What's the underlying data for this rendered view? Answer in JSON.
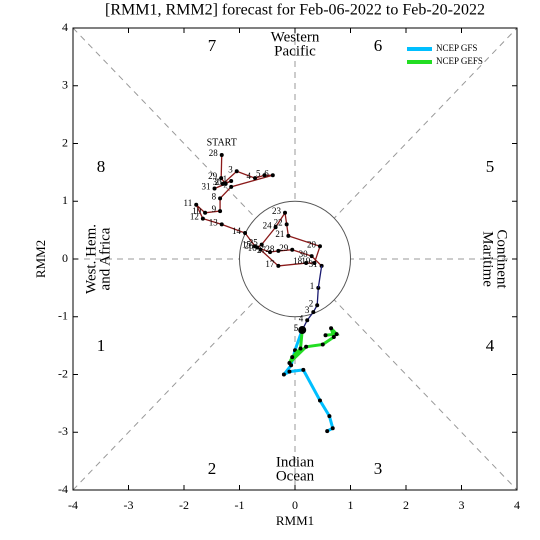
{
  "chart_data": {
    "type": "mjo-phase",
    "title": "[RMM1, RMM2] forecast for Feb-06-2022 to Feb-20-2022",
    "x_label": "RMM1",
    "y_label": "RMM2",
    "xlim": [
      -4,
      4
    ],
    "ylim": [
      -4,
      4
    ],
    "xticks": [
      -4,
      -3,
      -2,
      -1,
      0,
      1,
      2,
      3,
      4
    ],
    "yticks": [
      -4,
      -3,
      -2,
      -1,
      0,
      1,
      2,
      3,
      4
    ],
    "circle_radius": 1,
    "phases": [
      1,
      2,
      3,
      4,
      5,
      6,
      7,
      8
    ],
    "regions": [
      [
        "Western",
        "Pacific"
      ],
      [
        "Indian",
        "Ocean"
      ],
      [
        "West. Hem.",
        "and Africa"
      ],
      [
        "Maritime",
        "Continent"
      ]
    ],
    "start_label": "START",
    "legend_position": "upper right",
    "series": [
      {
        "kind": "observed",
        "color": "#8b1a1a",
        "label_color": "#000",
        "days": [
          28,
          29,
          30,
          31,
          1,
          2,
          3,
          4,
          5,
          6,
          7,
          8,
          9,
          10,
          11,
          12,
          13,
          14,
          15,
          16,
          17,
          18,
          19,
          20,
          21,
          22,
          23,
          24,
          25,
          26,
          27,
          28,
          29,
          30,
          31
        ],
        "x": [
          -1.32,
          -1.33,
          -1.25,
          -1.45,
          -1.15,
          -1.3,
          -1.05,
          -0.72,
          -0.55,
          -0.4,
          -1.15,
          -1.35,
          -1.35,
          -1.62,
          -1.78,
          -1.66,
          -1.32,
          -0.9,
          -0.72,
          -0.62,
          -0.3,
          0.2,
          0.35,
          0.45,
          -0.12,
          -0.15,
          -0.18,
          -0.35,
          -0.6,
          -0.68,
          -0.45,
          -0.3,
          -0.05,
          0.3,
          0.48
        ],
        "values": [
          1.8,
          1.4,
          1.3,
          1.22,
          1.35,
          1.3,
          1.52,
          1.4,
          1.45,
          1.45,
          1.25,
          1.05,
          0.83,
          0.8,
          0.94,
          0.7,
          0.6,
          0.45,
          0.22,
          0.16,
          -0.12,
          -0.07,
          -0.07,
          0.22,
          0.4,
          0.6,
          0.8,
          0.55,
          0.25,
          0.2,
          0.12,
          0.14,
          0.16,
          0.05,
          -0.12
        ]
      },
      {
        "kind": "observed",
        "color": "#191970",
        "label_color": "#000",
        "days": [
          1,
          2,
          3,
          4,
          5
        ],
        "x": [
          0.42,
          0.4,
          0.33,
          0.22,
          0.13
        ],
        "values": [
          -0.5,
          -0.8,
          -0.92,
          -1.06,
          -1.23
        ]
      },
      {
        "kind": "forecast",
        "name": "NCEP GFS",
        "color": "#00bfff",
        "x": [
          0.13,
          0.0,
          -0.07,
          -0.2,
          -0.1,
          0.15,
          0.45,
          0.62,
          0.68,
          0.58
        ],
        "values": [
          -1.23,
          -1.58,
          -1.84,
          -2.0,
          -1.95,
          -1.92,
          -2.45,
          -2.72,
          -2.93,
          -2.98
        ]
      },
      {
        "kind": "forecast",
        "name": "NCEP GEFS",
        "color": "#22dd22",
        "x": [
          0.13,
          0.1,
          -0.05,
          -0.1,
          0.2,
          0.5,
          0.7,
          0.65,
          0.75,
          0.55
        ],
        "values": [
          -1.23,
          -1.55,
          -1.7,
          -1.8,
          -1.52,
          -1.48,
          -1.35,
          -1.2,
          -1.3,
          -1.32
        ]
      }
    ]
  }
}
